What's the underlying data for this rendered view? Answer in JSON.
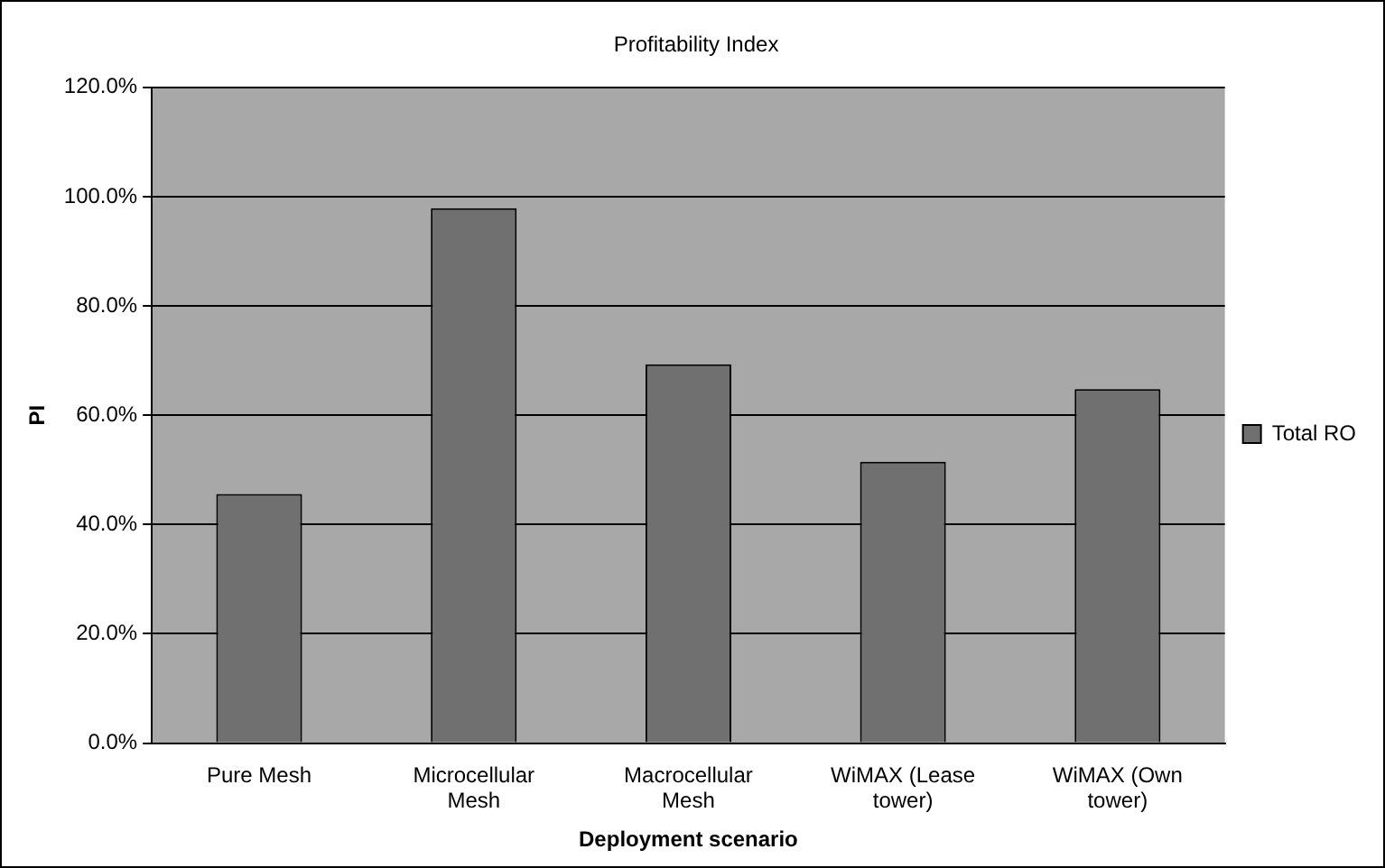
{
  "chart_data": {
    "type": "bar",
    "title": "Profitability Index",
    "xlabel": "Deployment scenario",
    "ylabel": "PI",
    "categories": [
      "Pure Mesh",
      "Microcellular Mesh",
      "Macrocellular Mesh",
      "WiMAX (Lease tower)",
      "WiMAX (Own tower)"
    ],
    "series": [
      {
        "name": "Total RO",
        "color": "#707070",
        "values": [
          45.6,
          97.9,
          69.3,
          51.5,
          64.8
        ]
      }
    ],
    "ylim": [
      0,
      120
    ],
    "yticks": [
      {
        "value": 0,
        "label": "0.0%"
      },
      {
        "value": 20,
        "label": "20.0%"
      },
      {
        "value": 40,
        "label": "40.0%"
      },
      {
        "value": 60,
        "label": "60.0%"
      },
      {
        "value": 80,
        "label": "80.0%"
      },
      {
        "value": 100,
        "label": "100.0%"
      },
      {
        "value": 120,
        "label": "120.0%"
      }
    ],
    "grid": "y",
    "legend": "right"
  }
}
